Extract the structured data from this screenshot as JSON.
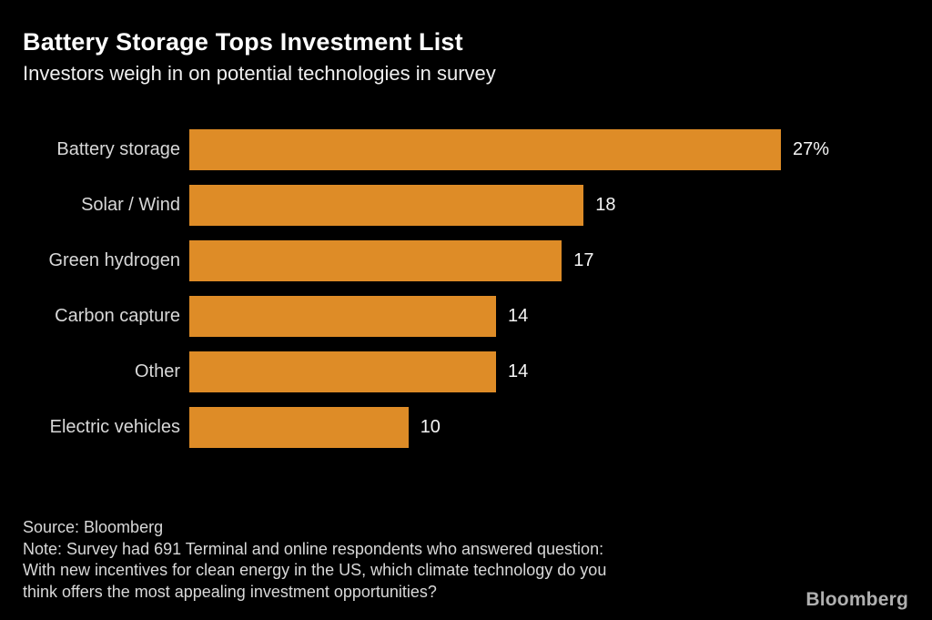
{
  "header": {
    "title": "Battery Storage Tops Investment List",
    "subtitle": "Investors weigh in on potential technologies in survey"
  },
  "chart_data": {
    "type": "bar",
    "orientation": "horizontal",
    "title": "Battery Storage Tops Investment List",
    "subtitle": "Investors weigh in on potential technologies in survey",
    "categories": [
      "Battery storage",
      "Solar / Wind",
      "Green hydrogen",
      "Carbon capture",
      "Other",
      "Electric vehicles"
    ],
    "values": [
      27,
      18,
      17,
      14,
      14,
      10
    ],
    "value_labels": [
      "27%",
      "18",
      "17",
      "14",
      "14",
      "10"
    ],
    "unit": "percent",
    "xlim": [
      0,
      27
    ],
    "grid": false,
    "legend": false,
    "bar_color": "#de8c27"
  },
  "footer": {
    "source": "Source: Bloomberg",
    "note_lines": [
      "Note: Survey had 691 Terminal and online respondents who answered question:",
      "With new incentives for clean energy in the US, which climate technology do you",
      "think offers the most appealing investment opportunities?"
    ],
    "brand": "Bloomberg"
  },
  "colors": {
    "background": "#000000",
    "bar": "#de8c27",
    "title_text": "#ffffff",
    "subtitle_text": "#f0f0f0",
    "category_label_text": "#d8d8d8",
    "value_label_text": "#f5f5f5",
    "footer_text": "#d8d8d8",
    "brand_text": "#b0b0b0"
  }
}
